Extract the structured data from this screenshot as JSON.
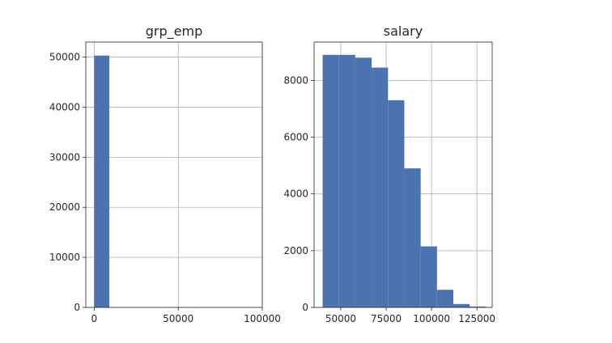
{
  "chart_data": [
    {
      "type": "bar",
      "subtype": "histogram",
      "title": "grp_emp",
      "xlabel": "",
      "ylabel": "",
      "grid": true,
      "xlim": [
        -5000,
        100000
      ],
      "ylim": [
        0,
        53000
      ],
      "xticks": [
        0,
        50000,
        100000
      ],
      "xtick_labels": [
        "0",
        "50000",
        "100000"
      ],
      "yticks": [
        0,
        10000,
        20000,
        30000,
        40000,
        50000
      ],
      "ytick_labels": [
        "0",
        "10000",
        "20000",
        "30000",
        "40000",
        "50000"
      ],
      "bins": [
        {
          "x0": 0,
          "x1": 9000,
          "count": 50300
        }
      ],
      "color": "#4c72b0"
    },
    {
      "type": "bar",
      "subtype": "histogram",
      "title": "salary",
      "xlabel": "",
      "ylabel": "",
      "grid": true,
      "xlim": [
        35300,
        133400
      ],
      "ylim": [
        0,
        9350
      ],
      "xticks": [
        50000,
        75000,
        100000,
        125000
      ],
      "xtick_labels": [
        "50000",
        "75000",
        "100000",
        "125000"
      ],
      "yticks": [
        0,
        2000,
        4000,
        6000,
        8000
      ],
      "ytick_labels": [
        "0",
        "2000",
        "4000",
        "6000",
        "8000"
      ],
      "bins": [
        {
          "x0": 40000,
          "x1": 49000,
          "count": 8900
        },
        {
          "x0": 49000,
          "x1": 58000,
          "count": 8900
        },
        {
          "x0": 58000,
          "x1": 67000,
          "count": 8800
        },
        {
          "x0": 67000,
          "x1": 76000,
          "count": 8450
        },
        {
          "x0": 76000,
          "x1": 85000,
          "count": 7300
        },
        {
          "x0": 85000,
          "x1": 94000,
          "count": 4900
        },
        {
          "x0": 94000,
          "x1": 103000,
          "count": 2150
        },
        {
          "x0": 103000,
          "x1": 112000,
          "count": 620
        },
        {
          "x0": 112000,
          "x1": 121000,
          "count": 120
        },
        {
          "x0": 121000,
          "x1": 130000,
          "count": 30
        }
      ],
      "color": "#4c72b0"
    }
  ]
}
